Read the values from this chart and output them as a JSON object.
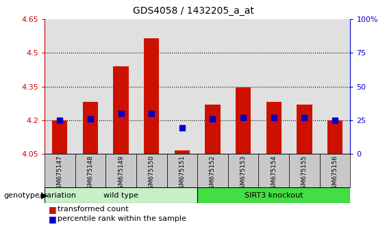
{
  "title": "GDS4058 / 1432205_a_at",
  "samples": [
    "GSM675147",
    "GSM675148",
    "GSM675149",
    "GSM675150",
    "GSM675151",
    "GSM675152",
    "GSM675153",
    "GSM675154",
    "GSM675155",
    "GSM675156"
  ],
  "transformed_counts": [
    4.2,
    4.28,
    4.44,
    4.565,
    4.065,
    4.27,
    4.345,
    4.28,
    4.27,
    4.2
  ],
  "percentile_ranks": [
    25,
    26,
    30,
    30,
    19,
    26,
    27,
    27,
    27,
    25
  ],
  "ylim": [
    4.05,
    4.65
  ],
  "ylim_right": [
    0,
    100
  ],
  "yticks_left": [
    4.05,
    4.2,
    4.35,
    4.5,
    4.65
  ],
  "yticks_right": [
    0,
    25,
    50,
    75,
    100
  ],
  "groups": [
    {
      "label": "wild type",
      "start": 0,
      "end": 5,
      "color": "#C8F0C8"
    },
    {
      "label": "SIRT3 knockout",
      "start": 5,
      "end": 10,
      "color": "#44DD44"
    }
  ],
  "bar_color": "#CC1100",
  "percentile_color": "#0000CC",
  "bar_width": 0.5,
  "percentile_marker_size": 6,
  "plot_bg_color": "#E0E0E0",
  "title_fontsize": 10,
  "axis_fontsize": 8,
  "legend_fontsize": 8,
  "genotype_label": "genotype/variation",
  "legend_items": [
    "transformed count",
    "percentile rank within the sample"
  ]
}
